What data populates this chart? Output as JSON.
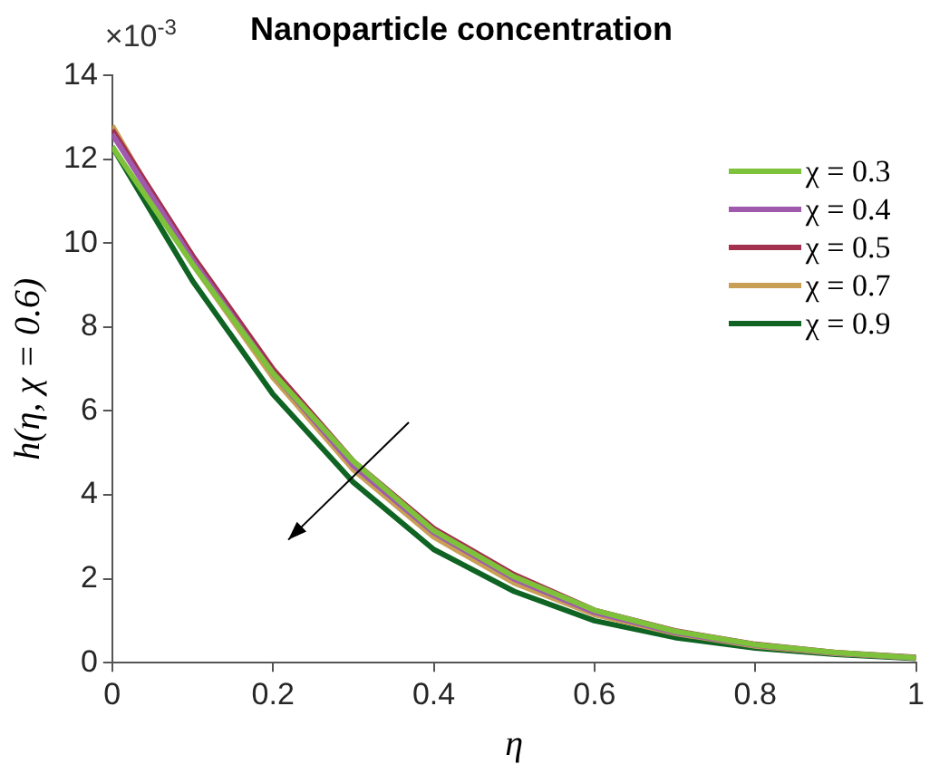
{
  "chart_data": {
    "type": "line",
    "title": "Nanoparticle concentration",
    "xlabel": "η",
    "ylabel": "h(η, χ = 0.6)",
    "annotations": [
      "×10$^{-3}$"
    ],
    "x": [
      0,
      0.1,
      0.2,
      0.3,
      0.4,
      0.5,
      0.6,
      0.7,
      0.8,
      0.9,
      1
    ],
    "xlim": [
      0,
      1
    ],
    "xticks": [
      0,
      0.2,
      0.4,
      0.6,
      0.8,
      1
    ],
    "ylim": [
      0,
      14
    ],
    "yticks": [
      0,
      2,
      4,
      6,
      8,
      10,
      12,
      14
    ],
    "grid": false,
    "legend": "top right",
    "marker": "none",
    "line_style": "solid",
    "series": [
      {
        "name": "χ = 0.3",
        "color": "#7ec13a",
        "values": [
          12.3,
          9.5,
          6.9,
          4.8,
          3.15,
          2.05,
          1.25,
          0.75,
          0.43,
          0.24,
          0.12
        ]
      },
      {
        "name": "χ = 0.4",
        "color": "#a05aad",
        "values": [
          12.6,
          9.6,
          6.9,
          4.7,
          3.1,
          2.0,
          1.2,
          0.72,
          0.42,
          0.23,
          0.12
        ]
      },
      {
        "name": "χ = 0.5",
        "color": "#a3304e",
        "values": [
          12.7,
          9.7,
          7.0,
          4.8,
          3.2,
          2.1,
          1.25,
          0.76,
          0.44,
          0.24,
          0.13
        ]
      },
      {
        "name": "χ = 0.7",
        "color": "#c89f55",
        "values": [
          12.8,
          9.5,
          6.8,
          4.6,
          3.0,
          1.9,
          1.15,
          0.7,
          0.4,
          0.22,
          0.12
        ]
      },
      {
        "name": "χ = 0.9",
        "color": "#0f6323",
        "values": [
          12.3,
          9.1,
          6.4,
          4.3,
          2.7,
          1.7,
          1.0,
          0.6,
          0.35,
          0.2,
          0.1
        ]
      }
    ]
  }
}
